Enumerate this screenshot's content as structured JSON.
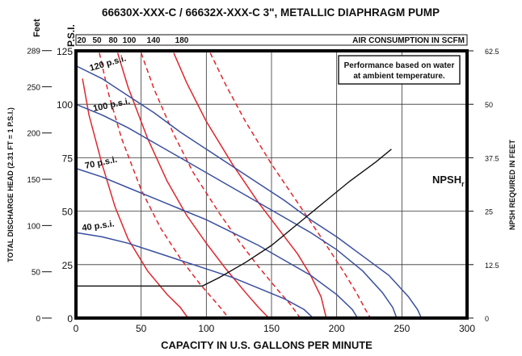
{
  "chart_data": {
    "type": "line",
    "title": "66630X-XXX-C / 66632X-XXX-C 3\", METALLIC DIAPHRAGM PUMP",
    "xlabel": "CAPACITY IN U.S. GALLONS PER MINUTE",
    "ylabel_left_psi": "P.S.I.",
    "ylabel_left_feet_unit": "Feet",
    "ylabel_left_feet": "TOTAL DISCHARGE HEAD (2.31 FT = 1 P.S.I.)",
    "ylabel_right": "NPSH REQUIRED IN FEET",
    "xlim": [
      0,
      300
    ],
    "ylim": [
      0,
      125
    ],
    "x_ticks": [
      "0",
      "50",
      "100",
      "150",
      "200",
      "250",
      "300"
    ],
    "y_ticks_psi": [
      "0",
      "25",
      "50",
      "75",
      "100",
      "125"
    ],
    "y_ticks_feet": [
      "0",
      "50",
      "100",
      "150",
      "200",
      "250",
      "289"
    ],
    "y_ticks_npsh": [
      "0",
      "12.5",
      "25",
      "37.5",
      "50",
      "62.5"
    ],
    "air_header": {
      "label": "AIR CONSUMPTION IN SCFM",
      "ticks": [
        "20",
        "50",
        "80",
        "100",
        "140",
        "180"
      ]
    },
    "note": [
      "Performance based on water",
      "at ambient temperature."
    ],
    "grid": true,
    "colors": {
      "pressure": "#3a4fa0",
      "air": "#e0262b",
      "npsh": "#111111"
    },
    "pressure_curves": [
      {
        "name": "120 p.s.i.",
        "points": [
          [
            0,
            118
          ],
          [
            20,
            112
          ],
          [
            40,
            104
          ],
          [
            60,
            96
          ],
          [
            80,
            87
          ],
          [
            100,
            79
          ],
          [
            120,
            71
          ],
          [
            140,
            63
          ],
          [
            160,
            55
          ],
          [
            180,
            46
          ],
          [
            200,
            38
          ],
          [
            220,
            29
          ],
          [
            240,
            20
          ],
          [
            255,
            10
          ],
          [
            262,
            4
          ],
          [
            265,
            0
          ]
        ]
      },
      {
        "name": "100 p.s.i.",
        "points": [
          [
            0,
            100
          ],
          [
            20,
            95
          ],
          [
            40,
            89
          ],
          [
            60,
            82
          ],
          [
            80,
            75
          ],
          [
            100,
            68
          ],
          [
            120,
            61
          ],
          [
            140,
            54
          ],
          [
            160,
            47
          ],
          [
            180,
            40
          ],
          [
            200,
            32
          ],
          [
            220,
            22
          ],
          [
            235,
            12
          ],
          [
            243,
            5
          ],
          [
            246,
            0
          ]
        ]
      },
      {
        "name": "70 p.s.i.",
        "points": [
          [
            0,
            70
          ],
          [
            20,
            66
          ],
          [
            40,
            61
          ],
          [
            60,
            56
          ],
          [
            80,
            51
          ],
          [
            100,
            46
          ],
          [
            120,
            40
          ],
          [
            140,
            34
          ],
          [
            160,
            27
          ],
          [
            180,
            20
          ],
          [
            200,
            11
          ],
          [
            212,
            4
          ],
          [
            216,
            0
          ]
        ]
      },
      {
        "name": "40 p.s.i.",
        "points": [
          [
            0,
            40
          ],
          [
            20,
            38
          ],
          [
            40,
            35
          ],
          [
            60,
            31
          ],
          [
            80,
            27
          ],
          [
            100,
            23
          ],
          [
            120,
            19
          ],
          [
            140,
            14
          ],
          [
            160,
            9
          ],
          [
            175,
            4
          ],
          [
            182,
            0
          ]
        ]
      }
    ],
    "air_curves": [
      {
        "name": "20",
        "style": "solid",
        "points": [
          [
            5,
            112
          ],
          [
            10,
            95
          ],
          [
            20,
            72
          ],
          [
            30,
            52
          ],
          [
            40,
            37
          ],
          [
            55,
            22
          ],
          [
            70,
            11
          ],
          [
            80,
            5
          ],
          [
            86,
            0
          ]
        ]
      },
      {
        "name": "50",
        "style": "dashed",
        "points": [
          [
            18,
            124
          ],
          [
            25,
            105
          ],
          [
            35,
            84
          ],
          [
            50,
            60
          ],
          [
            65,
            42
          ],
          [
            80,
            28
          ],
          [
            95,
            16
          ],
          [
            105,
            9
          ],
          [
            112,
            4
          ],
          [
            117,
            0
          ]
        ]
      },
      {
        "name": "80",
        "style": "solid",
        "points": [
          [
            32,
            124
          ],
          [
            40,
            108
          ],
          [
            55,
            84
          ],
          [
            70,
            64
          ],
          [
            85,
            48
          ],
          [
            100,
            35
          ],
          [
            115,
            23
          ],
          [
            130,
            12
          ],
          [
            140,
            5
          ],
          [
            148,
            0
          ]
        ]
      },
      {
        "name": "100",
        "style": "dashed",
        "points": [
          [
            50,
            124
          ],
          [
            60,
            107
          ],
          [
            75,
            86
          ],
          [
            90,
            68
          ],
          [
            110,
            49
          ],
          [
            125,
            36
          ],
          [
            140,
            24
          ],
          [
            155,
            13
          ],
          [
            165,
            6
          ],
          [
            172,
            0
          ]
        ]
      },
      {
        "name": "140",
        "style": "solid",
        "points": [
          [
            75,
            124
          ],
          [
            85,
            110
          ],
          [
            100,
            92
          ],
          [
            120,
            72
          ],
          [
            140,
            54
          ],
          [
            155,
            42
          ],
          [
            170,
            30
          ],
          [
            180,
            20
          ],
          [
            188,
            10
          ],
          [
            192,
            0
          ]
        ]
      },
      {
        "name": "180",
        "style": "dashed",
        "points": [
          [
            103,
            124
          ],
          [
            115,
            109
          ],
          [
            130,
            92
          ],
          [
            150,
            72
          ],
          [
            170,
            54
          ],
          [
            190,
            36
          ],
          [
            205,
            22
          ],
          [
            215,
            12
          ],
          [
            222,
            4
          ],
          [
            226,
            0
          ]
        ]
      }
    ],
    "npsh_curve": {
      "name": "NPSHr",
      "points": [
        [
          0,
          7.5
        ],
        [
          97,
          7.5
        ],
        [
          110,
          9.5
        ],
        [
          130,
          13
        ],
        [
          150,
          17
        ],
        [
          170,
          22
        ],
        [
          190,
          27
        ],
        [
          210,
          32
        ],
        [
          230,
          36.5
        ],
        [
          242,
          39.5
        ]
      ]
    },
    "curve_labels": {
      "p120": "120 p.s.i.",
      "p100": "100 p.s.i.",
      "p70": "70 p.s.i.",
      "p40": "40 p.s.i.",
      "npsh_main": "NPSH",
      "npsh_sub": "r"
    }
  }
}
